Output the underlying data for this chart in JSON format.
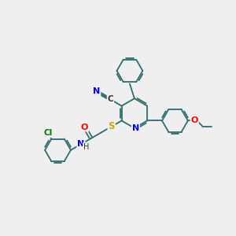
{
  "bg_color": "#efefef",
  "bond_color": "#2d6e6e",
  "atom_colors": {
    "N": "#0000ff",
    "O": "#ff0000",
    "S": "#ccaa00",
    "Cl": "#007700",
    "C_label": "#333333",
    "H": "#333333"
  },
  "figsize": [
    3.0,
    3.0
  ],
  "dpi": 100,
  "lw": 1.3,
  "ring_r": 0.55
}
